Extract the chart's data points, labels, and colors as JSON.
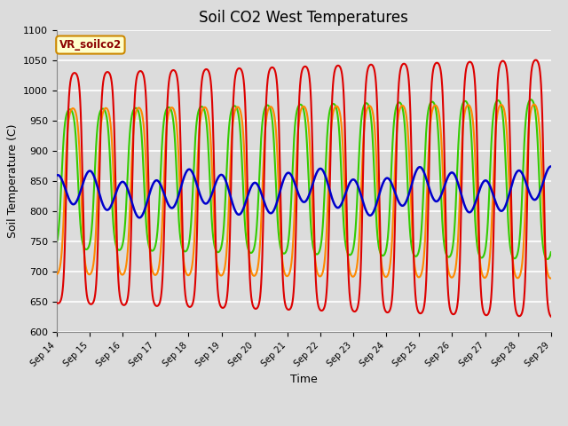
{
  "title": "Soil CO2 West Temperatures",
  "xlabel": "Time",
  "ylabel": "Soil Temperature (C)",
  "ylim": [
    600,
    1100
  ],
  "xlim": [
    0,
    15
  ],
  "background_color": "#dcdcdc",
  "plot_background": "#dcdcdc",
  "grid_color": "#ffffff",
  "annotation_text": "VR_soilco2",
  "annotation_bg": "#ffffcc",
  "annotation_border": "#cc8800",
  "x_tick_labels": [
    "Sep 14",
    "Sep 15",
    "Sep 16",
    "Sep 17",
    "Sep 18",
    "Sep 19",
    "Sep 20",
    "Sep 21",
    "Sep 22",
    "Sep 23",
    "Sep 24",
    "Sep 25",
    "Sep 26",
    "Sep 27",
    "Sep 28",
    "Sep 29"
  ],
  "series": {
    "TCW_1": {
      "color": "#dd0000",
      "lw": 1.5
    },
    "TCW_2": {
      "color": "#ff8800",
      "lw": 1.5
    },
    "TCW_3": {
      "color": "#33cc00",
      "lw": 1.5
    },
    "TCW_4": {
      "color": "#0000cc",
      "lw": 1.8
    }
  },
  "title_fontsize": 12,
  "tick_fontsize": 7,
  "label_fontsize": 9
}
